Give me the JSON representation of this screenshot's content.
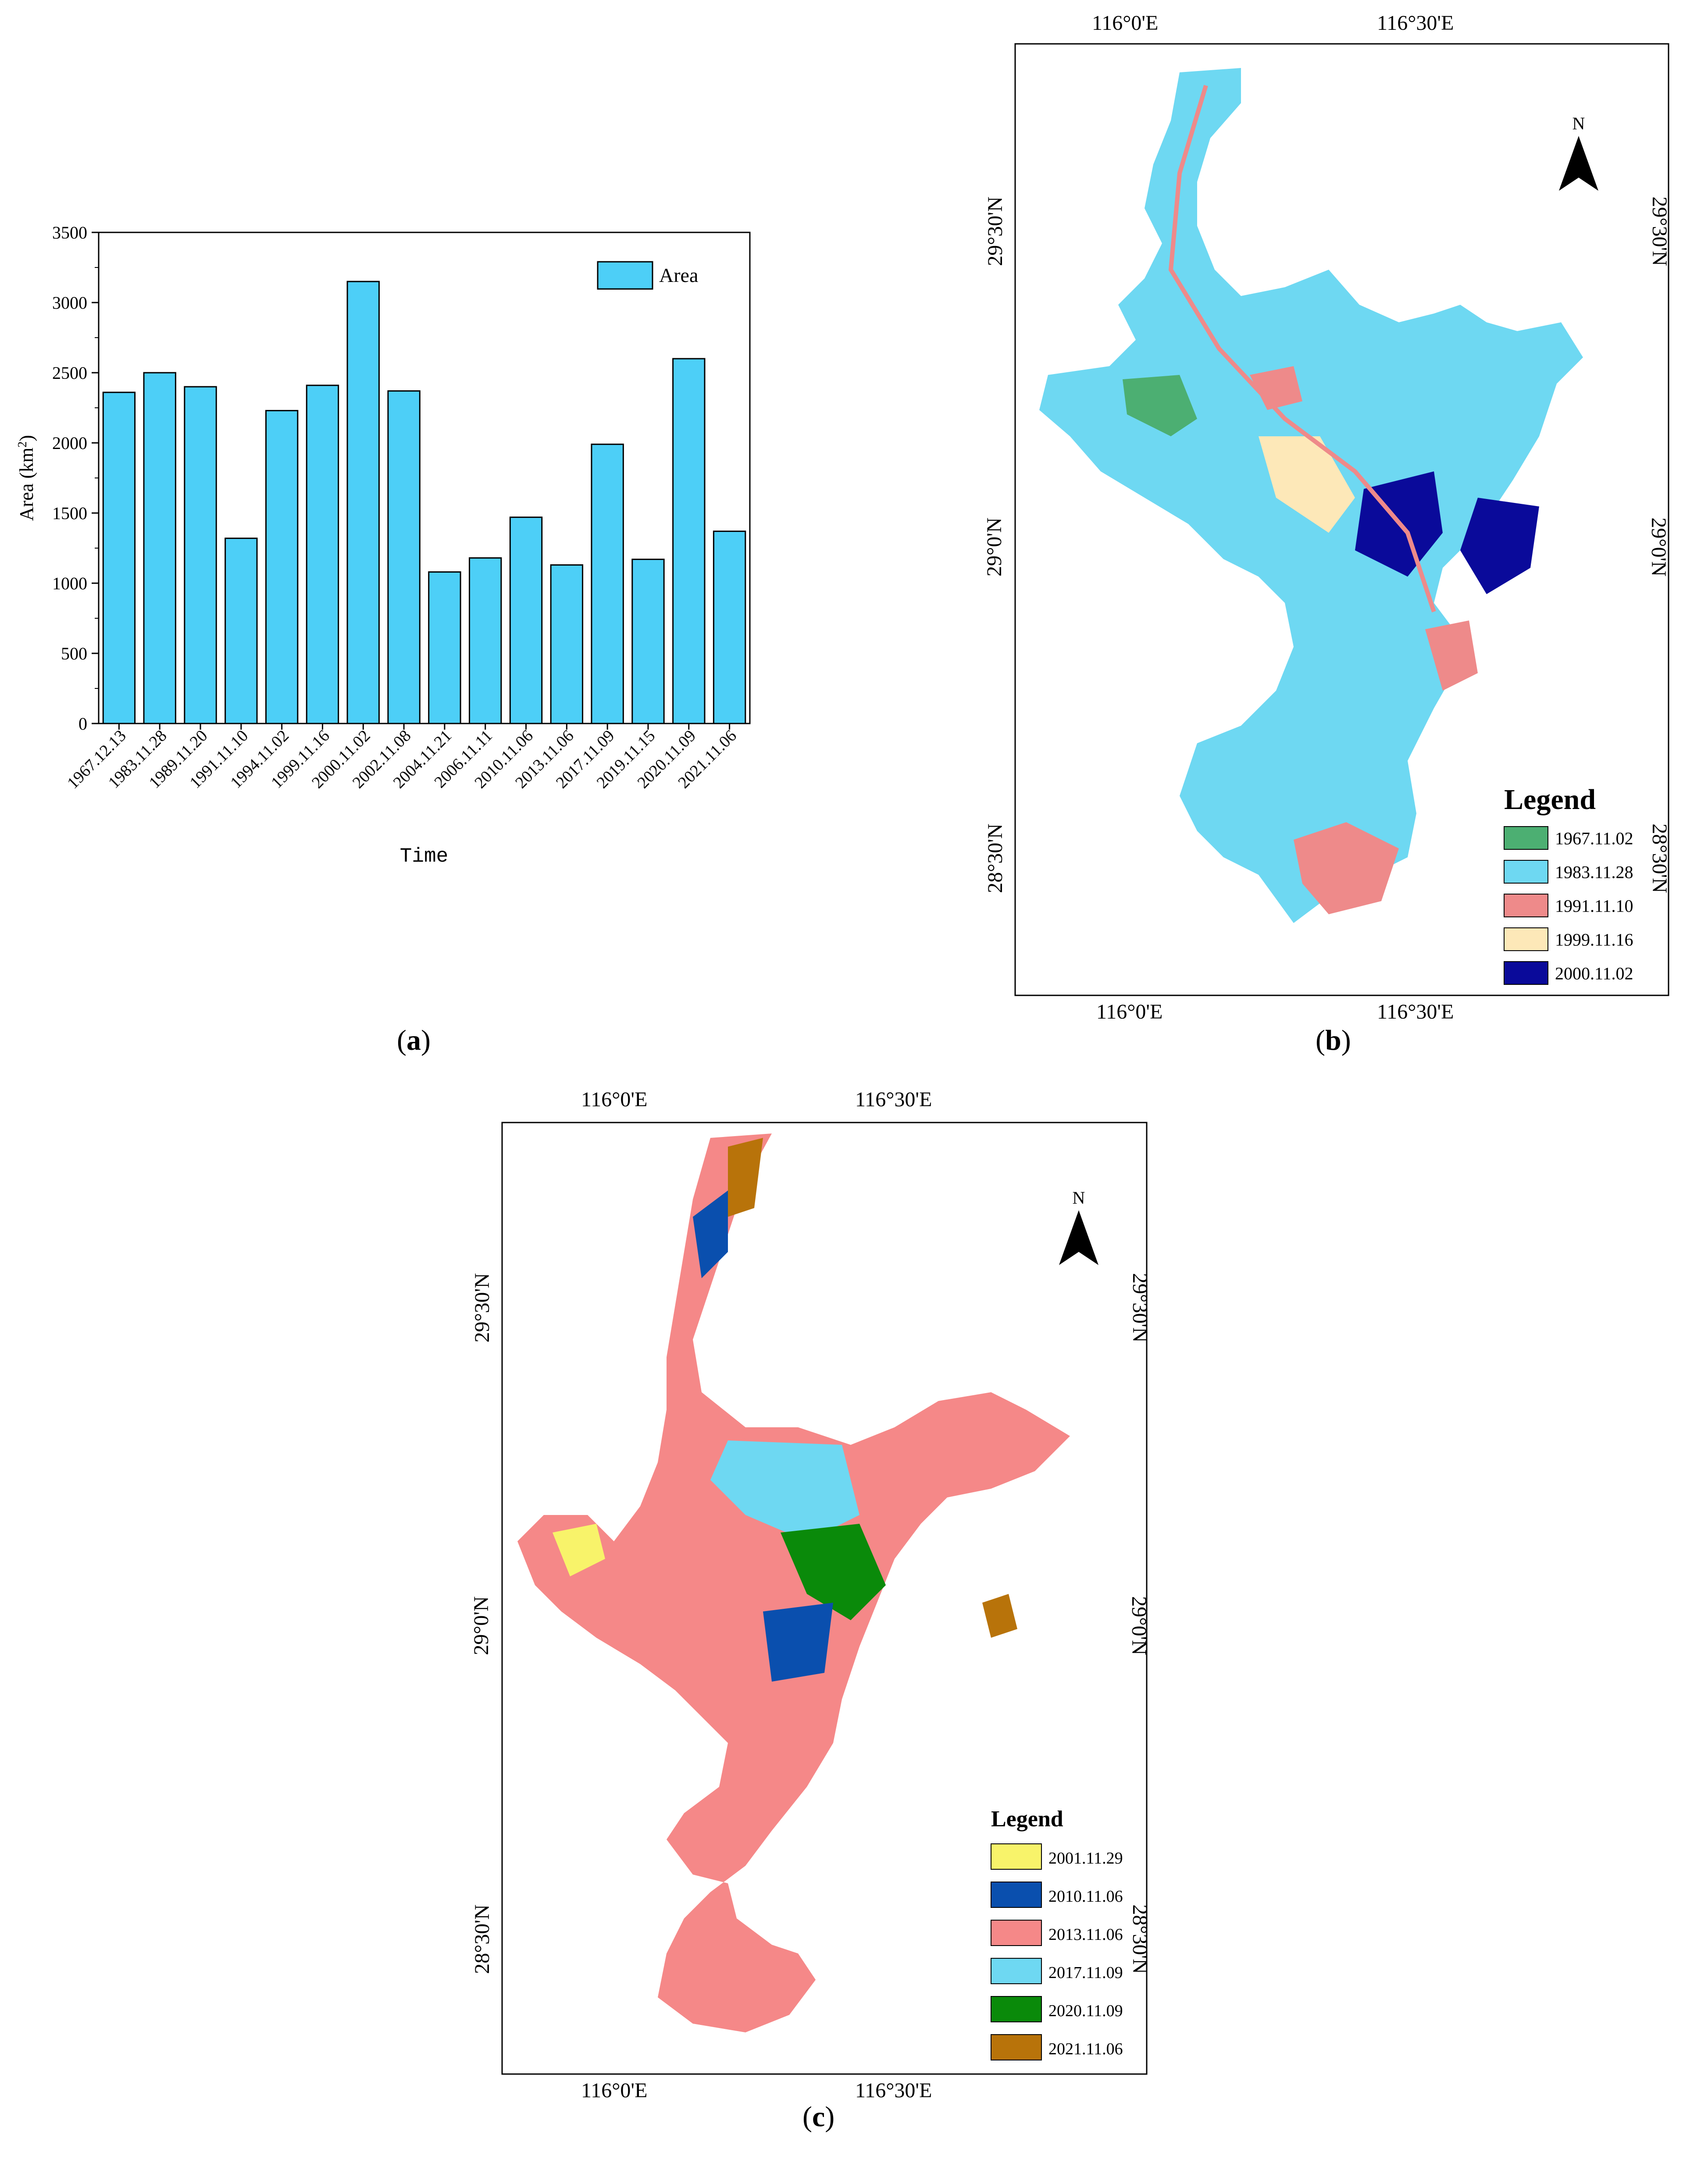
{
  "chart_data": {
    "type": "bar",
    "title": "",
    "xlabel": "Time",
    "ylabel": "Area (km²)",
    "ylabel_base": "Area (km",
    "ylabel_sup": "2",
    "ylabel_end": ")",
    "ylim": [
      0,
      3500
    ],
    "yticks": [
      0,
      500,
      1000,
      1500,
      2000,
      2500,
      3000,
      3500
    ],
    "legend": "Area",
    "legend_position": "top-right",
    "color": "#4dcff7",
    "categories": [
      "1967.12.13",
      "1983.11.28",
      "1989.11.20",
      "1991.11.10",
      "1994.11.02",
      "1999.11.16",
      "2000.11.02",
      "2002.11.08",
      "2004.11.21",
      "2006.11.11",
      "2010.11.06",
      "2013.11.06",
      "2017.11.09",
      "2019.11.15",
      "2020.11.09",
      "2021.11.06"
    ],
    "values": [
      2360,
      2500,
      2400,
      1320,
      2230,
      2410,
      3150,
      2370,
      1080,
      1180,
      1470,
      1130,
      1990,
      1170,
      2600,
      1370
    ]
  },
  "panels": {
    "a": "(a)",
    "b": "(b)",
    "c": "(c)",
    "open": "(",
    "close": ")",
    "a_letter": "a",
    "b_letter": "b",
    "c_letter": "c"
  },
  "map_b": {
    "lon_labels": [
      "116°0'E",
      "116°30'E"
    ],
    "lat_labels": [
      "29°30'N",
      "29°0'N",
      "28°30'N"
    ],
    "north": "N",
    "legend_title": "Legend",
    "legend": [
      {
        "label": "1967.11.02",
        "color": "#4caf72"
      },
      {
        "label": "1983.11.28",
        "color": "#6ed8f2"
      },
      {
        "label": "1991.11.10",
        "color": "#ee8a8a"
      },
      {
        "label": "1999.11.16",
        "color": "#fde8b8"
      },
      {
        "label": "2000.11.02",
        "color": "#0a0a9a"
      }
    ]
  },
  "map_c": {
    "lon_labels": [
      "116°0'E",
      "116°30'E"
    ],
    "lat_labels": [
      "29°30'N",
      "29°0'N",
      "28°30'N"
    ],
    "north": "N",
    "legend_title": "Legend",
    "legend": [
      {
        "label": "2001.11.29",
        "color": "#f8f36a"
      },
      {
        "label": "2010.11.06",
        "color": "#0a4fae"
      },
      {
        "label": "2013.11.06",
        "color": "#f58888"
      },
      {
        "label": "2017.11.09",
        "color": "#6ed8f2"
      },
      {
        "label": "2020.11.09",
        "color": "#0a8a0a"
      },
      {
        "label": "2021.11.06",
        "color": "#b8730a"
      }
    ]
  }
}
